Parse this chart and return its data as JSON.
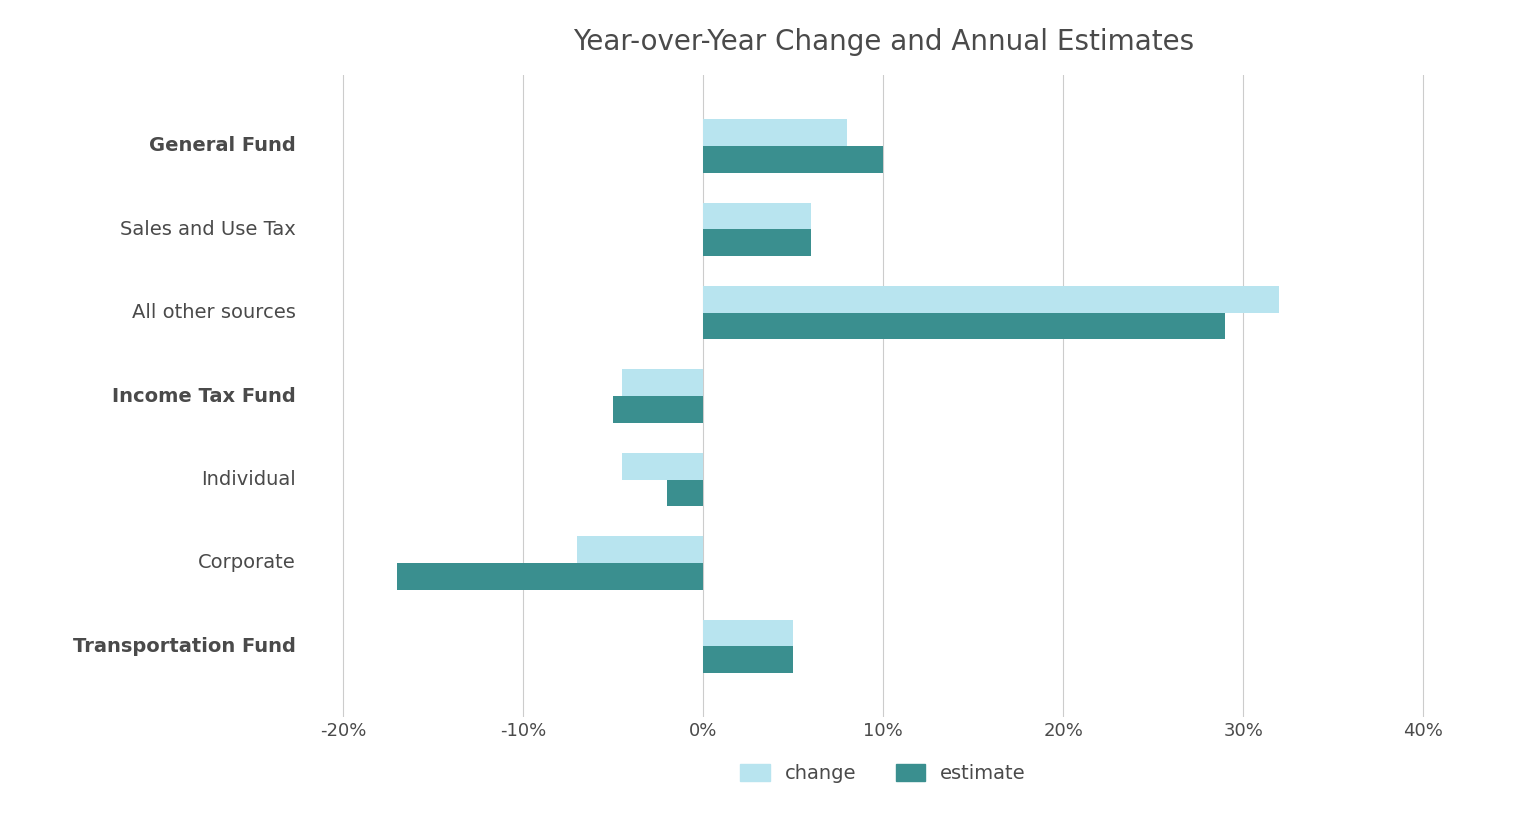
{
  "title": "Year-over-Year Change and Annual Estimates",
  "categories": [
    "General Fund",
    "Sales and Use Tax",
    "All other sources",
    "Income Tax Fund",
    "Individual",
    "Corporate",
    "Transportation Fund"
  ],
  "bold_categories": [
    "General Fund",
    "Income Tax Fund",
    "Transportation Fund"
  ],
  "indented_categories": [
    "Sales and Use Tax",
    "All other sources",
    "Individual",
    "Corporate"
  ],
  "change_values": [
    8.0,
    6.0,
    32.0,
    -4.5,
    -4.5,
    -7.0,
    5.0
  ],
  "estimate_values": [
    10.0,
    6.0,
    29.0,
    -5.0,
    -2.0,
    -17.0,
    5.0
  ],
  "color_change": "#b8e4ef",
  "color_estimate": "#3a8f8f",
  "xlim": [
    -22,
    42
  ],
  "xticks": [
    -20,
    -10,
    0,
    10,
    20,
    30,
    40
  ],
  "background_color": "#ffffff",
  "bar_height": 0.32,
  "legend_labels": [
    "change",
    "estimate"
  ],
  "title_fontsize": 20,
  "label_fontsize": 14,
  "tick_fontsize": 13,
  "legend_fontsize": 14,
  "text_color": "#4a4a4a",
  "grid_color": "#cccccc"
}
